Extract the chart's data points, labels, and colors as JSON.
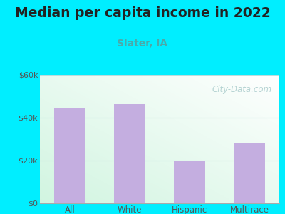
{
  "title": "Median per capita income in 2022",
  "subtitle": "Slater, IA",
  "categories": [
    "All",
    "White",
    "Hispanic",
    "Multirace"
  ],
  "values": [
    44500,
    46500,
    20000,
    28500
  ],
  "bar_color": "#c4aee0",
  "title_fontsize": 13.5,
  "subtitle_fontsize": 10,
  "title_color": "#222222",
  "subtitle_color": "#4aaaaa",
  "background_outer": "#00eeff",
  "ylim": [
    0,
    60000
  ],
  "yticks": [
    0,
    20000,
    40000,
    60000
  ],
  "ytick_labels": [
    "$0",
    "$20k",
    "$40k",
    "$60k"
  ],
  "watermark": "City-Data.com",
  "grid_color": "#cceeee"
}
